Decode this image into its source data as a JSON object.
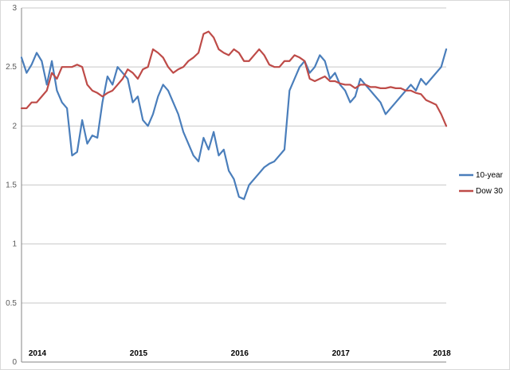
{
  "chart_data": {
    "type": "line",
    "title": "",
    "xlabel": "",
    "ylabel": "",
    "ylim": [
      0,
      3
    ],
    "yticks": [
      "0",
      "0.5",
      "1",
      "1.5",
      "2",
      "2.5",
      "3"
    ],
    "xticks": [
      "2014",
      "2015",
      "2016",
      "2017",
      "2018"
    ],
    "grid": "horizontal",
    "legend_position": "right",
    "x_range": [
      2014.0,
      2018.2
    ],
    "series": [
      {
        "name": "10-year",
        "color": "#4a7ebb",
        "x": [
          2014.0,
          2014.05,
          2014.1,
          2014.15,
          2014.2,
          2014.25,
          2014.3,
          2014.35,
          2014.4,
          2014.45,
          2014.5,
          2014.55,
          2014.6,
          2014.65,
          2014.7,
          2014.75,
          2014.8,
          2014.85,
          2014.9,
          2014.95,
          2015.0,
          2015.05,
          2015.1,
          2015.15,
          2015.2,
          2015.25,
          2015.3,
          2015.35,
          2015.4,
          2015.45,
          2015.5,
          2015.55,
          2015.6,
          2015.65,
          2015.7,
          2015.75,
          2015.8,
          2015.85,
          2015.9,
          2015.95,
          2016.0,
          2016.05,
          2016.1,
          2016.15,
          2016.2,
          2016.25,
          2016.3,
          2016.35,
          2016.4,
          2016.45,
          2016.5,
          2016.55,
          2016.6,
          2016.65,
          2016.7,
          2016.75,
          2016.8,
          2016.85,
          2016.9,
          2016.95,
          2017.0,
          2017.05,
          2017.1,
          2017.15,
          2017.2,
          2017.25,
          2017.3,
          2017.35,
          2017.4,
          2017.45,
          2017.5,
          2017.55,
          2017.6,
          2017.65,
          2017.7,
          2017.75,
          2017.8,
          2017.85,
          2017.9,
          2017.95,
          2018.0,
          2018.05,
          2018.1,
          2018.15,
          2018.2
        ],
        "values": [
          2.58,
          2.45,
          2.52,
          2.62,
          2.55,
          2.35,
          2.55,
          2.3,
          2.2,
          2.15,
          1.75,
          1.78,
          2.05,
          1.85,
          1.92,
          1.9,
          2.2,
          2.42,
          2.35,
          2.5,
          2.45,
          2.4,
          2.2,
          2.25,
          2.05,
          2.0,
          2.1,
          2.25,
          2.35,
          2.3,
          2.2,
          2.1,
          1.95,
          1.85,
          1.75,
          1.7,
          1.9,
          1.8,
          1.95,
          1.75,
          1.8,
          1.62,
          1.55,
          1.4,
          1.38,
          1.5,
          1.55,
          1.6,
          1.65,
          1.68,
          1.7,
          1.75,
          1.8,
          2.3,
          2.4,
          2.5,
          2.55,
          2.45,
          2.5,
          2.6,
          2.55,
          2.4,
          2.45,
          2.35,
          2.3,
          2.2,
          2.25,
          2.4,
          2.35,
          2.3,
          2.25,
          2.2,
          2.1,
          2.15,
          2.2,
          2.25,
          2.3,
          2.35,
          2.3,
          2.4,
          2.35,
          2.4,
          2.45,
          2.5,
          2.65
        ]
      },
      {
        "name": "Dow 30",
        "color": "#be4b48",
        "x": [
          2014.0,
          2014.05,
          2014.1,
          2014.15,
          2014.2,
          2014.25,
          2014.3,
          2014.35,
          2014.4,
          2014.45,
          2014.5,
          2014.55,
          2014.6,
          2014.65,
          2014.7,
          2014.75,
          2014.8,
          2014.85,
          2014.9,
          2014.95,
          2015.0,
          2015.05,
          2015.1,
          2015.15,
          2015.2,
          2015.25,
          2015.3,
          2015.35,
          2015.4,
          2015.45,
          2015.5,
          2015.55,
          2015.6,
          2015.65,
          2015.7,
          2015.75,
          2015.8,
          2015.85,
          2015.9,
          2015.95,
          2016.0,
          2016.05,
          2016.1,
          2016.15,
          2016.2,
          2016.25,
          2016.3,
          2016.35,
          2016.4,
          2016.45,
          2016.5,
          2016.55,
          2016.6,
          2016.65,
          2016.7,
          2016.75,
          2016.8,
          2016.85,
          2016.9,
          2016.95,
          2017.0,
          2017.05,
          2017.1,
          2017.15,
          2017.2,
          2017.25,
          2017.3,
          2017.35,
          2017.4,
          2017.45,
          2017.5,
          2017.55,
          2017.6,
          2017.65,
          2017.7,
          2017.75,
          2017.8,
          2017.85,
          2017.9,
          2017.95,
          2018.0,
          2018.05,
          2018.1,
          2018.15,
          2018.2
        ],
        "values": [
          2.15,
          2.15,
          2.2,
          2.2,
          2.25,
          2.3,
          2.45,
          2.4,
          2.5,
          2.5,
          2.5,
          2.52,
          2.5,
          2.35,
          2.3,
          2.28,
          2.25,
          2.28,
          2.3,
          2.35,
          2.4,
          2.48,
          2.45,
          2.4,
          2.48,
          2.5,
          2.65,
          2.62,
          2.58,
          2.5,
          2.45,
          2.48,
          2.5,
          2.55,
          2.58,
          2.62,
          2.78,
          2.8,
          2.75,
          2.65,
          2.62,
          2.6,
          2.65,
          2.62,
          2.55,
          2.55,
          2.6,
          2.65,
          2.6,
          2.52,
          2.5,
          2.5,
          2.55,
          2.55,
          2.6,
          2.58,
          2.55,
          2.4,
          2.38,
          2.4,
          2.42,
          2.38,
          2.38,
          2.36,
          2.35,
          2.35,
          2.32,
          2.35,
          2.35,
          2.33,
          2.33,
          2.32,
          2.32,
          2.33,
          2.32,
          2.32,
          2.3,
          2.3,
          2.28,
          2.27,
          2.22,
          2.2,
          2.18,
          2.1,
          2.0
        ]
      }
    ]
  }
}
